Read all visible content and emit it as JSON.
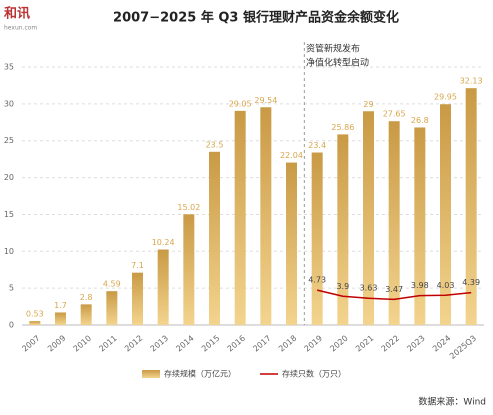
{
  "logo": {
    "text": "和讯",
    "sub": "hexun.com"
  },
  "chart_data": {
    "type": "bar",
    "title": "2007−2025 年 Q3 银行理财产品资金余额变化",
    "annotation": [
      "资管新规发布",
      "净值化转型启动"
    ],
    "source": "数据来源：Wind",
    "categories": [
      "2007",
      "2009",
      "2010",
      "2011",
      "2012",
      "2013",
      "2014",
      "2015",
      "2016",
      "2017",
      "2018",
      "2019",
      "2020",
      "2021",
      "2022",
      "2023",
      "2024",
      "2025Q3"
    ],
    "series": [
      {
        "name": "存续规模（万亿元）",
        "color": "#d8a64c",
        "type": "bar",
        "values": [
          0.53,
          1.7,
          2.8,
          4.59,
          7.1,
          10.24,
          15.02,
          23.5,
          29.05,
          29.54,
          22.04,
          23.4,
          25.86,
          29,
          27.65,
          26.8,
          29.95,
          32.13
        ]
      },
      {
        "name": "存续只数（万只）",
        "color": "#c00000",
        "type": "line",
        "values": [
          null,
          null,
          null,
          null,
          null,
          null,
          null,
          null,
          null,
          null,
          null,
          4.73,
          3.9,
          3.63,
          3.47,
          3.98,
          4.03,
          4.39
        ]
      }
    ],
    "ylim": [
      0,
      37.5
    ],
    "yticks": [
      0,
      5,
      10,
      15,
      20,
      25,
      30,
      35
    ],
    "grid": true
  }
}
